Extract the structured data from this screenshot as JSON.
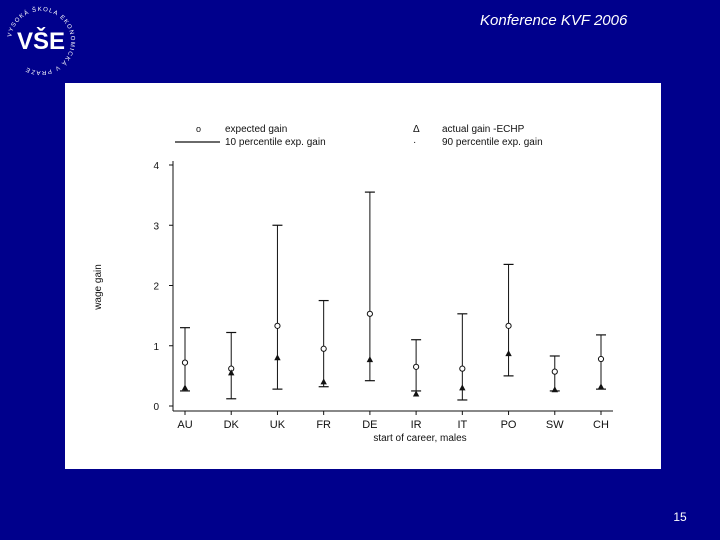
{
  "slide": {
    "title": "Konference KVF 2006",
    "page_number": "15",
    "logo_text": "VŠE",
    "logo_ring_text": "VYSOKÁ ŠKOLA EKONOMICKÁ V PRAZE"
  },
  "colors": {
    "background": "#00008c",
    "panel": "#ffffff",
    "ink": "#111111"
  },
  "chart_data": {
    "type": "scatter",
    "xlabel": "start of career, males",
    "ylabel": "wage gain",
    "ylim": [
      0,
      4
    ],
    "yticks": [
      0,
      1,
      2,
      3,
      4
    ],
    "grid": false,
    "legend_placement": "top",
    "categories": [
      "AU",
      "DK",
      "UK",
      "FR",
      "DE",
      "IR",
      "IT",
      "PO",
      "SW",
      "CH"
    ],
    "legend": {
      "expected_label": "expected gain",
      "actual_label": "actual gain -ECHP",
      "p10_label": "10 percentile exp. gain",
      "p90_label": "90 percentile exp. gain",
      "expected_marker": "o",
      "actual_marker": "Δ",
      "p90_marker": "·"
    },
    "series": [
      {
        "name": "expected gain",
        "values": [
          0.72,
          0.62,
          1.33,
          0.95,
          1.53,
          0.65,
          0.62,
          1.33,
          0.57,
          0.78
        ]
      },
      {
        "name": "actual gain -ECHP",
        "values": [
          0.3,
          0.55,
          0.8,
          0.4,
          0.77,
          0.2,
          0.3,
          0.87,
          0.27,
          0.32
        ]
      },
      {
        "name": "10 percentile exp. gain",
        "values": [
          0.25,
          0.12,
          0.28,
          0.32,
          0.42,
          0.25,
          0.1,
          0.5,
          0.25,
          0.28
        ]
      },
      {
        "name": "90 percentile exp. gain",
        "values": [
          1.3,
          1.22,
          3.0,
          1.75,
          3.55,
          1.1,
          1.53,
          2.35,
          0.83,
          1.18
        ]
      }
    ]
  }
}
